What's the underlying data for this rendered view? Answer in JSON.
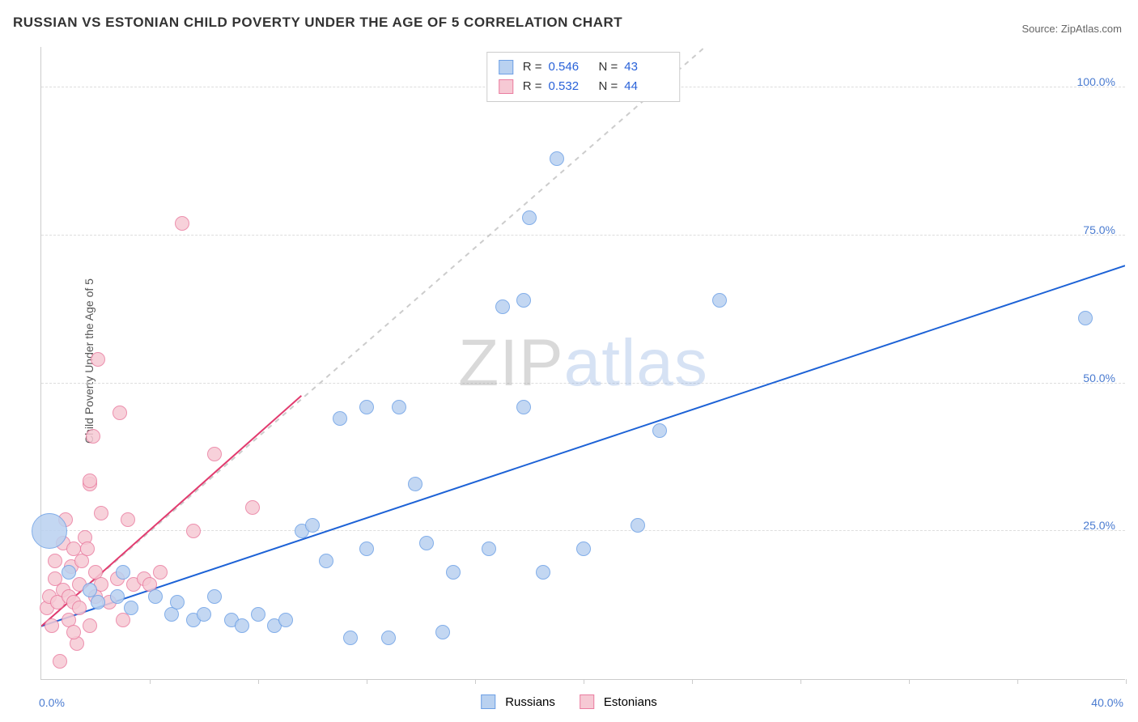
{
  "title": "RUSSIAN VS ESTONIAN CHILD POVERTY UNDER THE AGE OF 5 CORRELATION CHART",
  "source_label": "Source: ",
  "source_name": "ZipAtlas.com",
  "y_axis_label": "Child Poverty Under the Age of 5",
  "watermark": {
    "part1": "ZIP",
    "part2": "atlas"
  },
  "chart": {
    "type": "scatter",
    "background_color": "#ffffff",
    "grid_color": "#dddddd",
    "axis_color": "#cccccc",
    "xlim": [
      0,
      40
    ],
    "ylim": [
      0,
      107
    ],
    "x_ticks": [
      0,
      4,
      8,
      12,
      16,
      20,
      24,
      28,
      32,
      36,
      40
    ],
    "y_ticks": [
      25,
      50,
      75,
      100
    ],
    "x_origin_label": "0.0%",
    "x_max_label": "40.0%",
    "y_tick_labels": [
      "25.0%",
      "50.0%",
      "75.0%",
      "100.0%"
    ],
    "marker_radius": 9,
    "marker_stroke_width": 1,
    "series": [
      {
        "id": "russians",
        "label": "Russians",
        "fill": "#b9d1f0",
        "stroke": "#6da0e6",
        "R_label": "R = ",
        "R_value": "0.546",
        "N_label": "N = ",
        "N_value": "43",
        "trend": {
          "x1": 0,
          "y1": 9,
          "x2": 40,
          "y2": 70,
          "color": "#1d62d6",
          "width": 2
        },
        "ref_line": {
          "x1": 0,
          "y1": 9,
          "x2": 24.5,
          "y2": 107,
          "color": "#cccccc",
          "dash": true
        },
        "points": [
          {
            "x": 0.3,
            "y": 25,
            "r": 22
          },
          {
            "x": 1.0,
            "y": 18
          },
          {
            "x": 1.8,
            "y": 15
          },
          {
            "x": 2.1,
            "y": 13
          },
          {
            "x": 2.8,
            "y": 14
          },
          {
            "x": 3.3,
            "y": 12
          },
          {
            "x": 3.0,
            "y": 18
          },
          {
            "x": 4.2,
            "y": 14
          },
          {
            "x": 4.8,
            "y": 11
          },
          {
            "x": 5.0,
            "y": 13
          },
          {
            "x": 5.6,
            "y": 10
          },
          {
            "x": 6.0,
            "y": 11
          },
          {
            "x": 6.4,
            "y": 14
          },
          {
            "x": 7.0,
            "y": 10
          },
          {
            "x": 7.4,
            "y": 9
          },
          {
            "x": 8.0,
            "y": 11
          },
          {
            "x": 8.6,
            "y": 9
          },
          {
            "x": 9.0,
            "y": 10
          },
          {
            "x": 9.6,
            "y": 25
          },
          {
            "x": 10.0,
            "y": 26
          },
          {
            "x": 10.5,
            "y": 20
          },
          {
            "x": 11.0,
            "y": 44
          },
          {
            "x": 11.4,
            "y": 7
          },
          {
            "x": 12.0,
            "y": 46
          },
          {
            "x": 12.0,
            "y": 22
          },
          {
            "x": 12.8,
            "y": 7
          },
          {
            "x": 13.2,
            "y": 46
          },
          {
            "x": 13.8,
            "y": 33
          },
          {
            "x": 14.2,
            "y": 23
          },
          {
            "x": 14.8,
            "y": 8
          },
          {
            "x": 15.2,
            "y": 18
          },
          {
            "x": 16.5,
            "y": 22
          },
          {
            "x": 17.0,
            "y": 63
          },
          {
            "x": 17.8,
            "y": 46
          },
          {
            "x": 17.8,
            "y": 64
          },
          {
            "x": 18.0,
            "y": 78
          },
          {
            "x": 18.5,
            "y": 18
          },
          {
            "x": 19.0,
            "y": 88
          },
          {
            "x": 20.0,
            "y": 22
          },
          {
            "x": 22.0,
            "y": 26
          },
          {
            "x": 22.8,
            "y": 42
          },
          {
            "x": 25.0,
            "y": 64
          },
          {
            "x": 38.5,
            "y": 61
          }
        ]
      },
      {
        "id": "estonians",
        "label": "Estonians",
        "fill": "#f6c9d4",
        "stroke": "#ea7da0",
        "R_label": "R = ",
        "R_value": "0.532",
        "N_label": "N = ",
        "N_value": "44",
        "trend": {
          "x1": 0,
          "y1": 9,
          "x2": 9.6,
          "y2": 48,
          "color": "#e23b6f",
          "width": 2
        },
        "points": [
          {
            "x": 0.2,
            "y": 12
          },
          {
            "x": 0.3,
            "y": 14
          },
          {
            "x": 0.4,
            "y": 9
          },
          {
            "x": 0.5,
            "y": 17
          },
          {
            "x": 0.5,
            "y": 20
          },
          {
            "x": 0.6,
            "y": 13
          },
          {
            "x": 0.7,
            "y": 3
          },
          {
            "x": 0.8,
            "y": 23
          },
          {
            "x": 0.8,
            "y": 15
          },
          {
            "x": 0.9,
            "y": 27
          },
          {
            "x": 1.0,
            "y": 10
          },
          {
            "x": 1.0,
            "y": 14
          },
          {
            "x": 1.1,
            "y": 19
          },
          {
            "x": 1.2,
            "y": 22
          },
          {
            "x": 1.2,
            "y": 13
          },
          {
            "x": 1.3,
            "y": 6
          },
          {
            "x": 1.4,
            "y": 16
          },
          {
            "x": 1.4,
            "y": 12
          },
          {
            "x": 1.5,
            "y": 20
          },
          {
            "x": 1.6,
            "y": 24
          },
          {
            "x": 1.7,
            "y": 22
          },
          {
            "x": 1.8,
            "y": 9
          },
          {
            "x": 1.8,
            "y": 33
          },
          {
            "x": 1.8,
            "y": 33.5
          },
          {
            "x": 1.9,
            "y": 41
          },
          {
            "x": 2.0,
            "y": 18
          },
          {
            "x": 2.0,
            "y": 14
          },
          {
            "x": 2.1,
            "y": 54
          },
          {
            "x": 2.2,
            "y": 28
          },
          {
            "x": 2.2,
            "y": 16
          },
          {
            "x": 2.5,
            "y": 13
          },
          {
            "x": 2.8,
            "y": 17
          },
          {
            "x": 2.9,
            "y": 45
          },
          {
            "x": 3.0,
            "y": 10
          },
          {
            "x": 3.2,
            "y": 27
          },
          {
            "x": 3.4,
            "y": 16
          },
          {
            "x": 3.8,
            "y": 17
          },
          {
            "x": 4.0,
            "y": 16
          },
          {
            "x": 4.4,
            "y": 18
          },
          {
            "x": 5.2,
            "y": 77
          },
          {
            "x": 5.6,
            "y": 25
          },
          {
            "x": 6.4,
            "y": 38
          },
          {
            "x": 7.8,
            "y": 29
          },
          {
            "x": 1.2,
            "y": 8
          }
        ]
      }
    ]
  }
}
